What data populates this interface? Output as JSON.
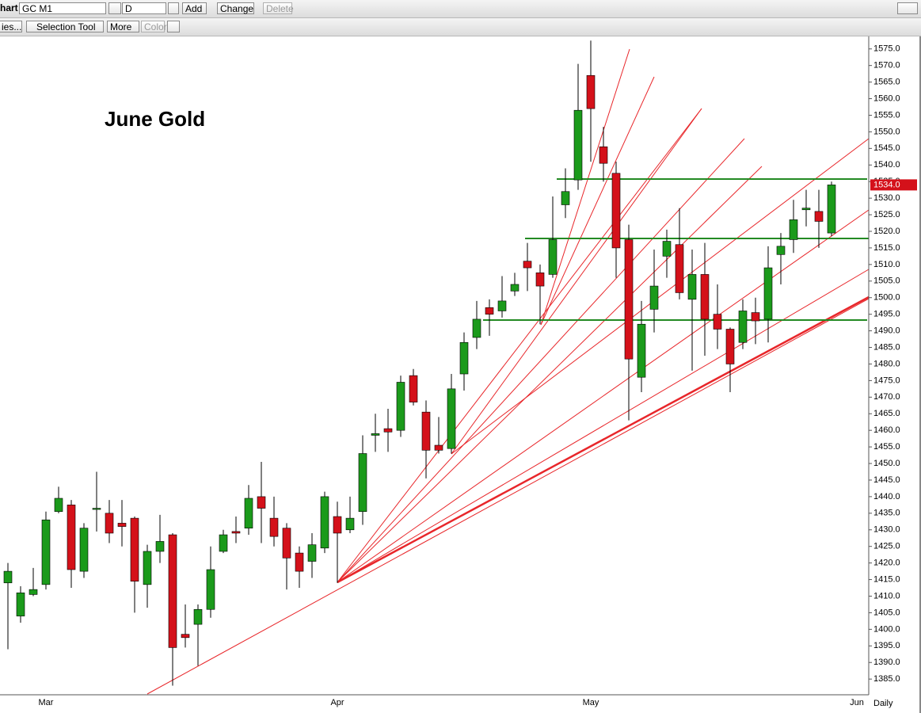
{
  "toolbar": {
    "window_label": "hart",
    "symbol": "GC M1",
    "interval": "D",
    "buttons": [
      "Add",
      "Change",
      "Delete"
    ]
  },
  "toolbar2": {
    "buttons": [
      "ies...",
      "Selection Tool",
      "More",
      "Color"
    ]
  },
  "chart_data": {
    "type": "candlestick",
    "title": "June Gold",
    "period_label": "Daily",
    "categories": [
      null,
      null,
      null,
      "Mar",
      null,
      null,
      null,
      null,
      null,
      null,
      null,
      null,
      null,
      null,
      null,
      null,
      null,
      null,
      null,
      null,
      null,
      null,
      null,
      null,
      null,
      null,
      "Apr",
      null,
      null,
      null,
      null,
      null,
      null,
      null,
      null,
      null,
      null,
      null,
      null,
      null,
      null,
      null,
      null,
      null,
      null,
      null,
      "May",
      null,
      null,
      null,
      null,
      null,
      null,
      null,
      null,
      null,
      null,
      null,
      null,
      null,
      null,
      null,
      null,
      null,
      null,
      null,
      null,
      "Jun"
    ],
    "open": [
      1414,
      1404,
      1410.5,
      1413.5,
      1435.5,
      1437.5,
      1417.5,
      1436.5,
      1435,
      1432,
      1433.5,
      1413.5,
      1423.5,
      1428.5,
      1398.5,
      1401.5,
      1406,
      1423.5,
      1429.5,
      1430.5,
      1440,
      1433.5,
      1430.5,
      1423,
      1420.5,
      1424.5,
      1434,
      1430,
      1435.5,
      1458.5,
      1460.5,
      1460,
      1476.5,
      1465.5,
      1455.5,
      1454.5,
      1477,
      1488,
      1497,
      1496,
      1502,
      1511,
      1507.5,
      1507,
      1528,
      1535.5,
      1567,
      1545.5,
      1537.5,
      1517.5,
      1476,
      1496.5,
      1512.5,
      1516,
      1499.5,
      1507,
      1495,
      1490.5,
      1486.5,
      1495.5,
      1493.5,
      1513,
      1517.5,
      1526.5,
      1526,
      1519.5,
      null,
      null
    ],
    "high": [
      1420,
      1413,
      1418.5,
      1435.5,
      1443,
      1439,
      1432,
      1447.5,
      1439,
      1439,
      1434,
      1425.5,
      1434.5,
      1429,
      1407.5,
      1407.5,
      1425,
      1430,
      1434,
      1443.5,
      1450.5,
      1440,
      1432,
      1425,
      1429,
      1441.5,
      1438.5,
      1440,
      1458.5,
      1465,
      1466.5,
      1476.5,
      1478.5,
      1469,
      1464,
      1477,
      1489.5,
      1499,
      1499.5,
      1506.5,
      1507.5,
      1516.5,
      1510,
      1530.5,
      1539,
      1570.5,
      1577.5,
      1551.5,
      1541,
      1522,
      1499,
      1514.5,
      1520.5,
      1527,
      1514.5,
      1516.5,
      1504,
      1491,
      1499.5,
      1500,
      1515.5,
      1519.5,
      1529.5,
      1532.5,
      1532.5,
      1535,
      null,
      null
    ],
    "low": [
      1394,
      1402,
      1410,
      1412,
      1435,
      1412.5,
      1415.5,
      1429.5,
      1426,
      1425,
      1405,
      1406.5,
      1420,
      1383,
      1394.5,
      1389,
      1403.5,
      1423,
      1426,
      1428.5,
      1426,
      1425,
      1412,
      1412.5,
      1415.5,
      1423,
      1414,
      1429,
      1431.5,
      1453.5,
      1453.5,
      1458,
      1467.5,
      1445.5,
      1453,
      1453,
      1472,
      1484.5,
      1488.5,
      1494,
      1500.5,
      1502,
      1492,
      1506,
      1524,
      1532.5,
      1541,
      1535,
      1506,
      1463,
      1471.5,
      1489.5,
      1506,
      1499.5,
      1478,
      1482.5,
      1484.5,
      1471.5,
      1484.5,
      1486,
      1486.5,
      1504,
      1513.5,
      1521.5,
      1515,
      1518.5,
      null,
      null
    ],
    "close": [
      1417.5,
      1411,
      1412,
      1433,
      1439.5,
      1418,
      1430.5,
      1436.5,
      1429,
      1431,
      1414.5,
      1423.5,
      1426.5,
      1394.5,
      1397.5,
      1406,
      1418,
      1428.5,
      1429,
      1439.5,
      1436.5,
      1428,
      1421.5,
      1417.5,
      1425.5,
      1440,
      1429,
      1433.5,
      1453,
      1459,
      1459.5,
      1474.5,
      1468.5,
      1454,
      1454,
      1472.5,
      1486.5,
      1493.5,
      1495,
      1499,
      1504,
      1509,
      1503.5,
      1517.5,
      1532,
      1556.5,
      1557,
      1540.5,
      1515,
      1481.5,
      1492,
      1503.5,
      1517,
      1501.5,
      1507,
      1493.5,
      1490.5,
      1480,
      1496,
      1493,
      1509,
      1515.5,
      1523.5,
      1527,
      1523,
      1534,
      null,
      null
    ],
    "up_color": "#1b9a1b",
    "down_color": "#d4111a",
    "last_price": {
      "value": 1534,
      "label": "1534.0"
    },
    "ylim": [
      1380.5,
      1579
    ],
    "yticks": [
      {
        "value": 1385,
        "label": "1385.0"
      },
      {
        "value": 1390,
        "label": "1390.0"
      },
      {
        "value": 1395,
        "label": "1395.0"
      },
      {
        "value": 1400,
        "label": "1400.0"
      },
      {
        "value": 1405,
        "label": "1405.0"
      },
      {
        "value": 1410,
        "label": "1410.0"
      },
      {
        "value": 1415,
        "label": "1415.0"
      },
      {
        "value": 1420,
        "label": "1420.0"
      },
      {
        "value": 1425,
        "label": "1425.0"
      },
      {
        "value": 1430,
        "label": "1430.0"
      },
      {
        "value": 1435,
        "label": "1435.0"
      },
      {
        "value": 1440,
        "label": "1440.0"
      },
      {
        "value": 1445,
        "label": "1445.0"
      },
      {
        "value": 1450,
        "label": "1450.0"
      },
      {
        "value": 1455,
        "label": "1455.0"
      },
      {
        "value": 1460,
        "label": "1460.0"
      },
      {
        "value": 1465,
        "label": "1465.0"
      },
      {
        "value": 1470,
        "label": "1470.0"
      },
      {
        "value": 1475,
        "label": "1475.0"
      },
      {
        "value": 1480,
        "label": "1480.0"
      },
      {
        "value": 1485,
        "label": "1485.0"
      },
      {
        "value": 1490,
        "label": "1490.0"
      },
      {
        "value": 1495,
        "label": "1495.0"
      },
      {
        "value": 1500,
        "label": "1500.0"
      },
      {
        "value": 1505,
        "label": "1505.0"
      },
      {
        "value": 1510,
        "label": "1510.0"
      },
      {
        "value": 1515,
        "label": "1515.0"
      },
      {
        "value": 1520,
        "label": "1520.0"
      },
      {
        "value": 1525,
        "label": "1525.0"
      },
      {
        "value": 1530,
        "label": "1530.0"
      },
      {
        "value": 1535,
        "label": "1535.0"
      },
      {
        "value": 1540,
        "label": "1540.0"
      },
      {
        "value": 1545,
        "label": "1545.0"
      },
      {
        "value": 1550,
        "label": "1550.0"
      },
      {
        "value": 1555,
        "label": "1555.0"
      },
      {
        "value": 1560,
        "label": "1560.0"
      },
      {
        "value": 1565,
        "label": "1565.0"
      },
      {
        "value": 1570,
        "label": "1570.0"
      },
      {
        "value": 1575,
        "label": "1575.0"
      }
    ],
    "grid": false
  }
}
